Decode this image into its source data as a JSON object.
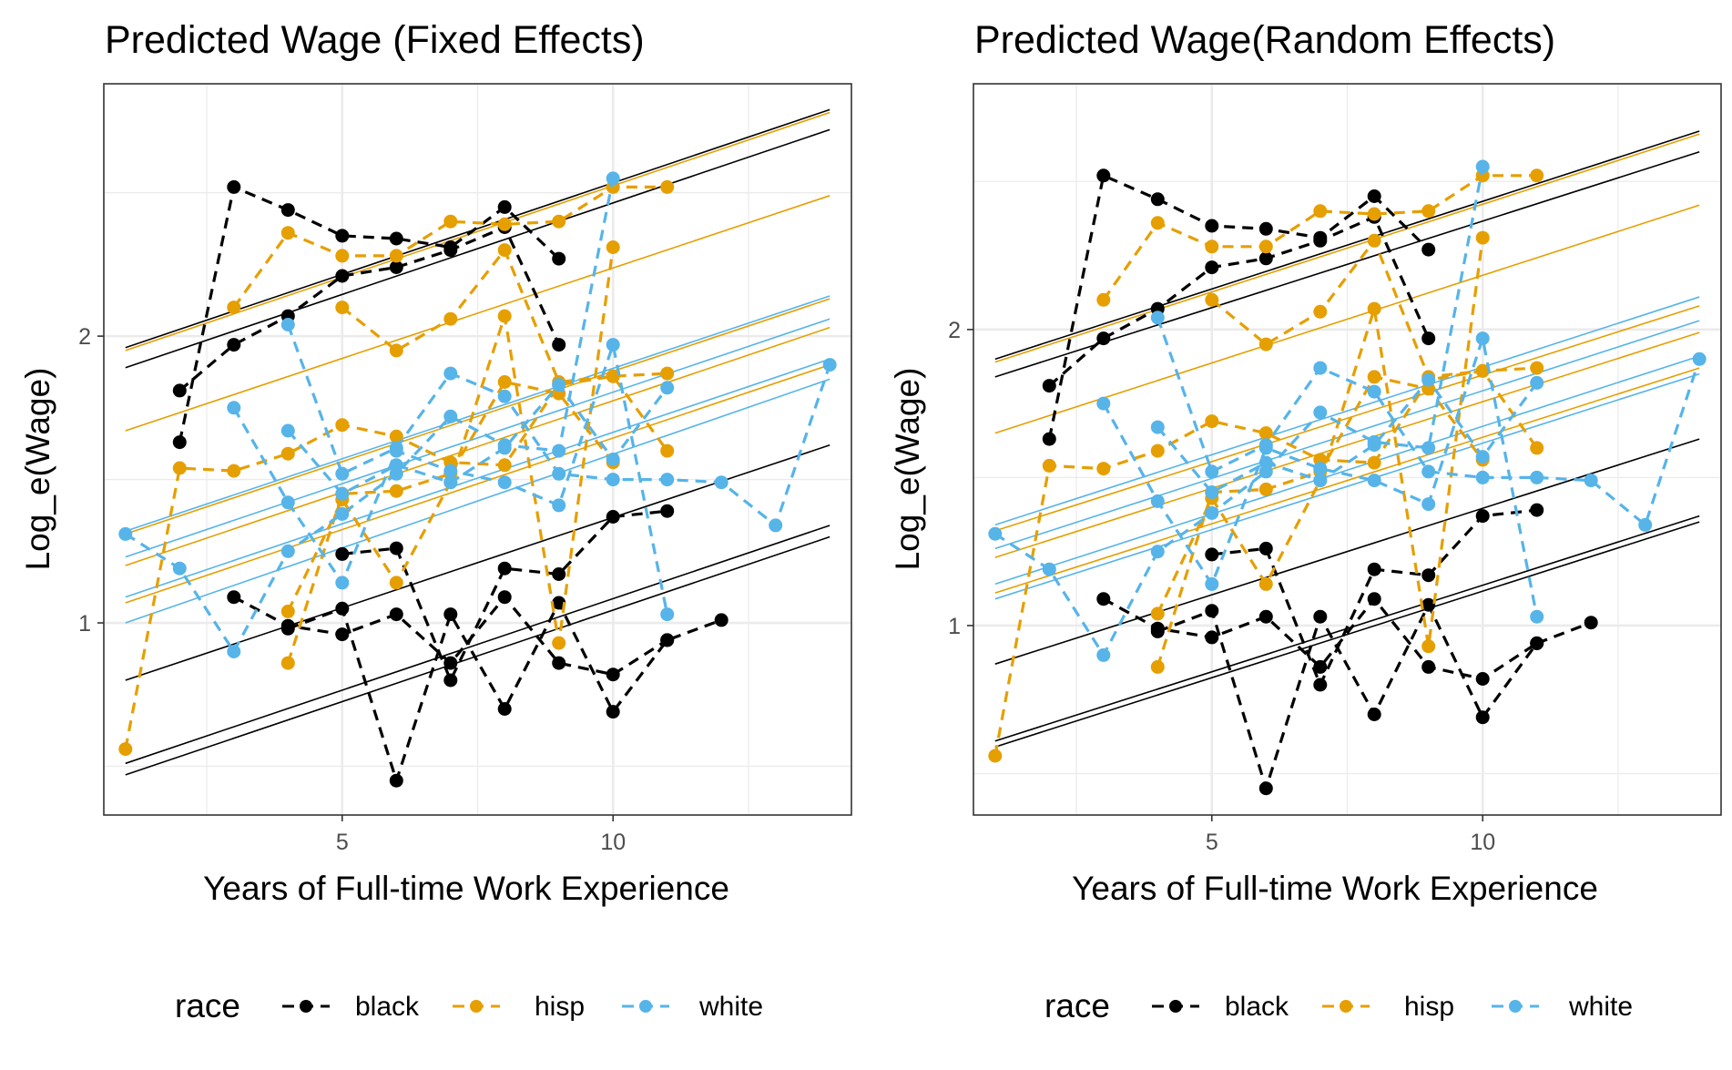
{
  "figure": {
    "legend": {
      "title": "race",
      "position": "bottom",
      "entries": [
        {
          "key": "black",
          "label": "black"
        },
        {
          "key": "hisp",
          "label": "hisp"
        },
        {
          "key": "white",
          "label": "white"
        }
      ]
    },
    "colors": {
      "black": "#000000",
      "hisp": "#E69F00",
      "white": "#56B4E9"
    }
  },
  "chart_data": [
    {
      "type": "line",
      "title": "Predicted Wage (Fixed Effects)",
      "xlabel": "Years of Full-time Work Experience",
      "ylabel": "Log_e(Wage)",
      "xlim": [
        0.6,
        14.4
      ],
      "ylim": [
        0.33,
        2.88
      ],
      "xticks": [
        5,
        10
      ],
      "yticks": [
        1,
        2
      ],
      "grid": true,
      "observed": [
        {
          "race": "black",
          "x": [
            2,
            3,
            4,
            5,
            6,
            7,
            8,
            9
          ],
          "y": [
            1.63,
            2.52,
            2.44,
            2.35,
            2.34,
            2.31,
            2.45,
            2.27
          ]
        },
        {
          "race": "black",
          "x": [
            2,
            3,
            4,
            5,
            6,
            7,
            8,
            9
          ],
          "y": [
            1.81,
            1.97,
            2.07,
            2.21,
            2.24,
            2.3,
            2.38,
            1.97
          ]
        },
        {
          "race": "black",
          "x": [
            3,
            4,
            5,
            6,
            7,
            8,
            9,
            10,
            11
          ],
          "y": [
            1.09,
            0.99,
            0.96,
            1.03,
            0.86,
            1.09,
            0.86,
            0.82,
            0.94
          ]
        },
        {
          "race": "black",
          "x": [
            4,
            5,
            6,
            7,
            8,
            9,
            10,
            11,
            12
          ],
          "y": [
            0.98,
            1.05,
            0.45,
            1.03,
            0.7,
            1.07,
            0.69,
            0.94,
            1.01
          ]
        },
        {
          "race": "black",
          "x": [
            5,
            6,
            7,
            8,
            9,
            10,
            11
          ],
          "y": [
            1.24,
            1.26,
            0.8,
            1.19,
            1.17,
            1.37,
            1.39
          ]
        },
        {
          "race": "hisp",
          "x": [
            3,
            4,
            5,
            6,
            7,
            8,
            9,
            10,
            11
          ],
          "y": [
            2.1,
            2.36,
            2.28,
            2.28,
            2.4,
            2.39,
            2.4,
            2.52,
            2.52
          ]
        },
        {
          "race": "hisp",
          "x": [
            5,
            6,
            7,
            8,
            9,
            10,
            11
          ],
          "y": [
            2.1,
            1.95,
            2.06,
            2.3,
            1.84,
            1.86,
            1.87
          ]
        },
        {
          "race": "hisp",
          "x": [
            1,
            2,
            3,
            4,
            5,
            6,
            7,
            8,
            9,
            10,
            11
          ],
          "y": [
            0.56,
            1.54,
            1.53,
            1.59,
            1.69,
            1.65,
            1.56,
            1.55,
            1.83,
            1.86,
            1.6
          ]
        },
        {
          "race": "hisp",
          "x": [
            4,
            5,
            6,
            7,
            8,
            9,
            10
          ],
          "y": [
            1.04,
            1.43,
            1.14,
            1.49,
            2.07,
            0.93,
            2.31
          ]
        },
        {
          "race": "hisp",
          "x": [
            4,
            5,
            6,
            7,
            8,
            9,
            10
          ],
          "y": [
            0.86,
            1.45,
            1.46,
            1.52,
            1.84,
            1.8,
            1.56
          ]
        },
        {
          "race": "white",
          "x": [
            1,
            2,
            3,
            4,
            5,
            6,
            7,
            8,
            9,
            10
          ],
          "y": [
            1.31,
            1.19,
            0.9,
            1.25,
            1.38,
            1.52,
            1.72,
            1.62,
            1.6,
            2.55
          ]
        },
        {
          "race": "white",
          "x": [
            3,
            4,
            5,
            6,
            7,
            8,
            9,
            10,
            11
          ],
          "y": [
            1.75,
            1.42,
            1.14,
            1.6,
            1.53,
            1.49,
            1.41,
            1.97,
            1.03
          ]
        },
        {
          "race": "white",
          "x": [
            4,
            5,
            6,
            7,
            8,
            9,
            10,
            11,
            12,
            13,
            14
          ],
          "y": [
            2.04,
            1.52,
            1.61,
            1.87,
            1.79,
            1.52,
            1.5,
            1.5,
            1.49,
            1.34,
            1.9
          ]
        },
        {
          "race": "white",
          "x": [
            4,
            5,
            6,
            7,
            8,
            9,
            10,
            11
          ],
          "y": [
            1.67,
            1.45,
            1.55,
            1.49,
            1.61,
            1.83,
            1.57,
            1.82
          ]
        }
      ],
      "fitted": [
        {
          "race": "black",
          "y_at_1": 1.96,
          "y_at_14": 2.79
        },
        {
          "race": "black",
          "y_at_1": 1.89,
          "y_at_14": 2.72
        },
        {
          "race": "black",
          "y_at_1": 0.8,
          "y_at_14": 1.62
        },
        {
          "race": "black",
          "y_at_1": 0.51,
          "y_at_14": 1.34
        },
        {
          "race": "black",
          "y_at_1": 0.47,
          "y_at_14": 1.3
        },
        {
          "race": "hisp",
          "y_at_1": 1.95,
          "y_at_14": 2.78
        },
        {
          "race": "hisp",
          "y_at_1": 1.67,
          "y_at_14": 2.49
        },
        {
          "race": "hisp",
          "y_at_1": 1.31,
          "y_at_14": 2.13
        },
        {
          "race": "hisp",
          "y_at_1": 1.2,
          "y_at_14": 2.03
        },
        {
          "race": "hisp",
          "y_at_1": 1.07,
          "y_at_14": 1.9
        },
        {
          "race": "white",
          "y_at_1": 1.32,
          "y_at_14": 2.14
        },
        {
          "race": "white",
          "y_at_1": 1.23,
          "y_at_14": 2.06
        },
        {
          "race": "white",
          "y_at_1": 1.09,
          "y_at_14": 1.92
        },
        {
          "race": "white",
          "y_at_1": 1.0,
          "y_at_14": 1.85
        }
      ]
    },
    {
      "type": "line",
      "title": "Predicted Wage(Random Effects)",
      "xlabel": "Years of Full-time Work Experience",
      "ylabel": "Log_e(Wage)",
      "xlim": [
        0.6,
        14.4
      ],
      "ylim": [
        0.36,
        2.83
      ],
      "xticks": [
        5,
        10
      ],
      "yticks": [
        1,
        2
      ],
      "grid": true,
      "observed": [
        {
          "race": "black",
          "x": [
            2,
            3,
            4,
            5,
            6,
            7,
            8,
            9
          ],
          "y": [
            1.63,
            2.52,
            2.44,
            2.35,
            2.34,
            2.31,
            2.45,
            2.27
          ]
        },
        {
          "race": "black",
          "x": [
            2,
            3,
            4,
            5,
            6,
            7,
            8,
            9
          ],
          "y": [
            1.81,
            1.97,
            2.07,
            2.21,
            2.24,
            2.3,
            2.38,
            1.97
          ]
        },
        {
          "race": "black",
          "x": [
            3,
            4,
            5,
            6,
            7,
            8,
            9,
            10,
            11
          ],
          "y": [
            1.09,
            0.99,
            0.96,
            1.03,
            0.86,
            1.09,
            0.86,
            0.82,
            0.94
          ]
        },
        {
          "race": "black",
          "x": [
            4,
            5,
            6,
            7,
            8,
            9,
            10,
            11,
            12
          ],
          "y": [
            0.98,
            1.05,
            0.45,
            1.03,
            0.7,
            1.07,
            0.69,
            0.94,
            1.01
          ]
        },
        {
          "race": "black",
          "x": [
            5,
            6,
            7,
            8,
            9,
            10,
            11
          ],
          "y": [
            1.24,
            1.26,
            0.8,
            1.19,
            1.17,
            1.37,
            1.39
          ]
        },
        {
          "race": "hisp",
          "x": [
            3,
            4,
            5,
            6,
            7,
            8,
            9,
            10,
            11
          ],
          "y": [
            2.1,
            2.36,
            2.28,
            2.28,
            2.4,
            2.39,
            2.4,
            2.52,
            2.52
          ]
        },
        {
          "race": "hisp",
          "x": [
            5,
            6,
            7,
            8,
            9,
            10,
            11
          ],
          "y": [
            2.1,
            1.95,
            2.06,
            2.3,
            1.84,
            1.86,
            1.87
          ]
        },
        {
          "race": "hisp",
          "x": [
            1,
            2,
            3,
            4,
            5,
            6,
            7,
            8,
            9,
            10,
            11
          ],
          "y": [
            0.56,
            1.54,
            1.53,
            1.59,
            1.69,
            1.65,
            1.56,
            1.55,
            1.83,
            1.86,
            1.6
          ]
        },
        {
          "race": "hisp",
          "x": [
            4,
            5,
            6,
            7,
            8,
            9,
            10
          ],
          "y": [
            1.04,
            1.43,
            1.14,
            1.49,
            2.07,
            0.93,
            2.31
          ]
        },
        {
          "race": "hisp",
          "x": [
            4,
            5,
            6,
            7,
            8,
            9,
            10
          ],
          "y": [
            0.86,
            1.45,
            1.46,
            1.52,
            1.84,
            1.8,
            1.56
          ]
        },
        {
          "race": "white",
          "x": [
            1,
            2,
            3,
            4,
            5,
            6,
            7,
            8,
            9,
            10
          ],
          "y": [
            1.31,
            1.19,
            0.9,
            1.25,
            1.38,
            1.52,
            1.72,
            1.62,
            1.6,
            2.55
          ]
        },
        {
          "race": "white",
          "x": [
            3,
            4,
            5,
            6,
            7,
            8,
            9,
            10,
            11
          ],
          "y": [
            1.75,
            1.42,
            1.14,
            1.6,
            1.53,
            1.49,
            1.41,
            1.97,
            1.03
          ]
        },
        {
          "race": "white",
          "x": [
            4,
            5,
            6,
            7,
            8,
            9,
            10,
            11,
            12,
            13,
            14
          ],
          "y": [
            2.04,
            1.52,
            1.61,
            1.87,
            1.79,
            1.52,
            1.5,
            1.5,
            1.49,
            1.34,
            1.9
          ]
        },
        {
          "race": "white",
          "x": [
            4,
            5,
            6,
            7,
            8,
            9,
            10,
            11
          ],
          "y": [
            1.67,
            1.45,
            1.55,
            1.49,
            1.61,
            1.83,
            1.57,
            1.82
          ]
        }
      ],
      "fitted": [
        {
          "race": "black",
          "y_at_1": 1.9,
          "y_at_14": 2.67
        },
        {
          "race": "black",
          "y_at_1": 1.84,
          "y_at_14": 2.6
        },
        {
          "race": "black",
          "y_at_1": 0.87,
          "y_at_14": 1.63
        },
        {
          "race": "black",
          "y_at_1": 0.61,
          "y_at_14": 1.37
        },
        {
          "race": "black",
          "y_at_1": 0.59,
          "y_at_14": 1.35
        },
        {
          "race": "hisp",
          "y_at_1": 1.89,
          "y_at_14": 2.66
        },
        {
          "race": "hisp",
          "y_at_1": 1.65,
          "y_at_14": 2.42
        },
        {
          "race": "hisp",
          "y_at_1": 1.32,
          "y_at_14": 2.08
        },
        {
          "race": "hisp",
          "y_at_1": 1.23,
          "y_at_14": 1.99
        },
        {
          "race": "hisp",
          "y_at_1": 1.11,
          "y_at_14": 1.87
        },
        {
          "race": "white",
          "y_at_1": 1.34,
          "y_at_14": 2.11
        },
        {
          "race": "white",
          "y_at_1": 1.26,
          "y_at_14": 2.03
        },
        {
          "race": "white",
          "y_at_1": 1.14,
          "y_at_14": 1.91
        },
        {
          "race": "white",
          "y_at_1": 1.09,
          "y_at_14": 1.85
        }
      ]
    }
  ]
}
